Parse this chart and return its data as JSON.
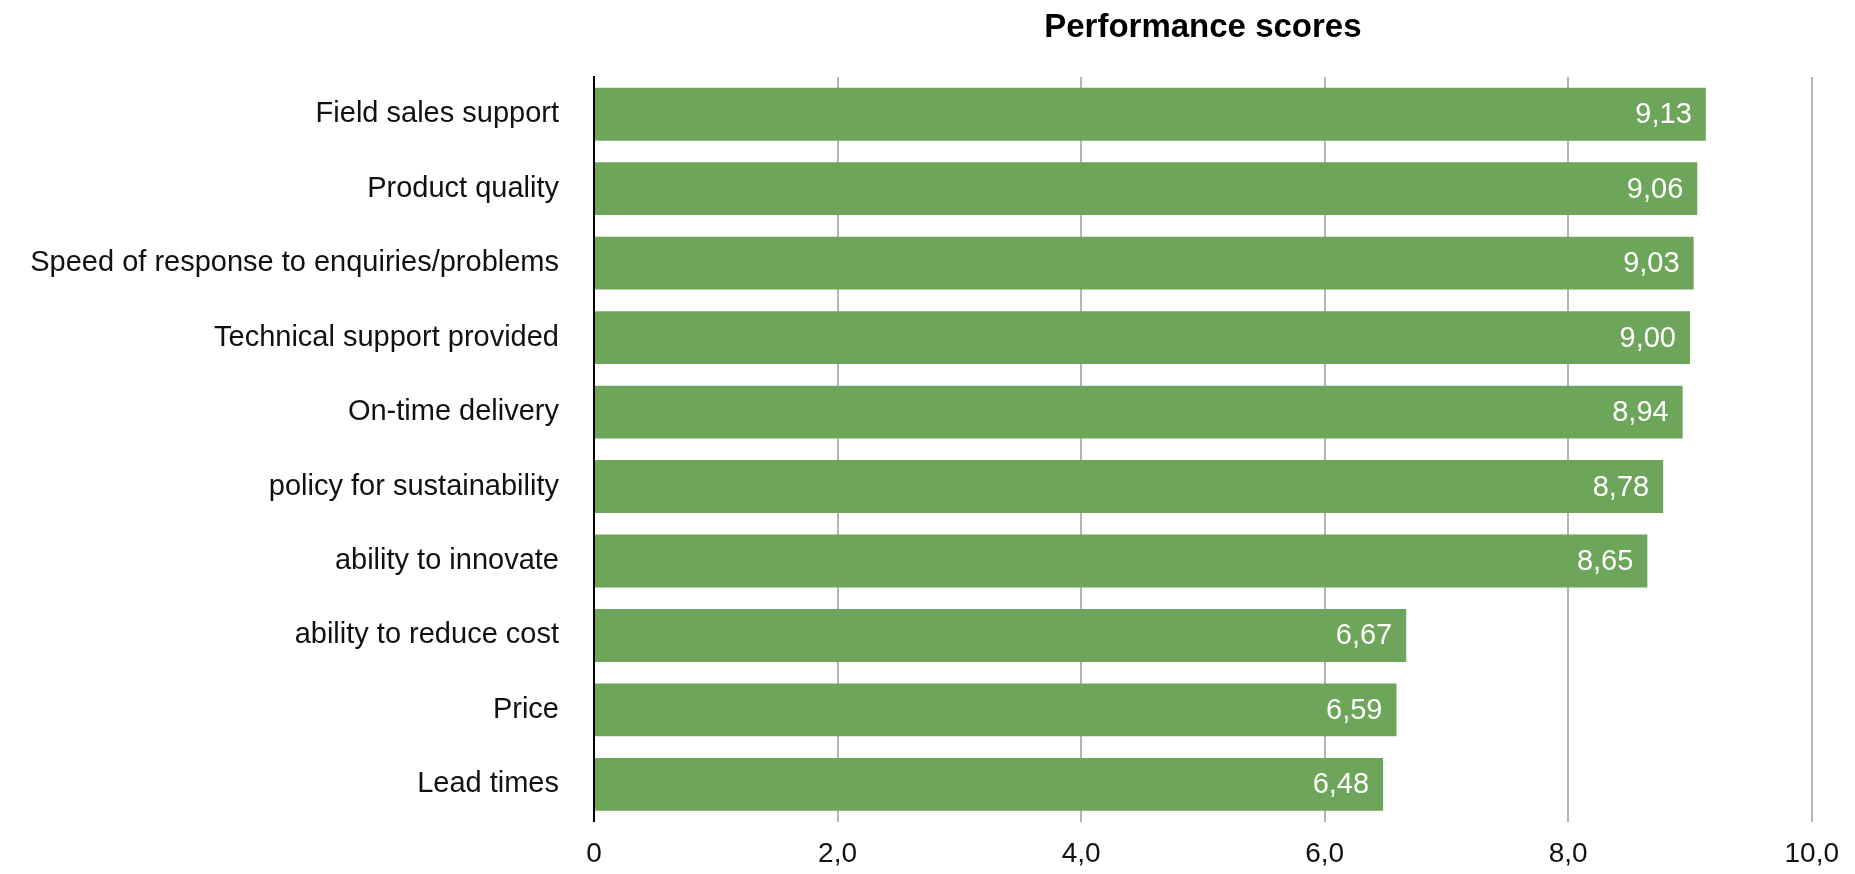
{
  "chart_data": {
    "type": "bar",
    "orientation": "horizontal",
    "title": "Performance scores",
    "categories": [
      "Field sales support",
      "Product quality",
      "Speed of response to enquiries/problems",
      "Technical support provided",
      "On-time delivery",
      "policy for sustainability",
      "ability to innovate",
      "ability to reduce cost",
      "Price",
      "Lead times"
    ],
    "values": [
      9.13,
      9.06,
      9.03,
      9.0,
      8.94,
      8.78,
      8.65,
      6.67,
      6.59,
      6.48
    ],
    "color": "#6da55a",
    "value_labels": [
      "9,13",
      "9,06",
      "9,03",
      "9,00",
      "8,94",
      "8,78",
      "8,65",
      "6,67",
      "6,59",
      "6,48"
    ],
    "xlim": [
      0,
      10
    ],
    "xticks": [
      0,
      {
        "value": 2,
        "label": "2,0"
      },
      {
        "value": 4,
        "label": "4,0"
      },
      {
        "value": 6,
        "label": "6,0"
      },
      {
        "value": 8,
        "label": "8,0"
      },
      {
        "value": 10,
        "label": "10,0"
      }
    ],
    "grid": "x"
  }
}
